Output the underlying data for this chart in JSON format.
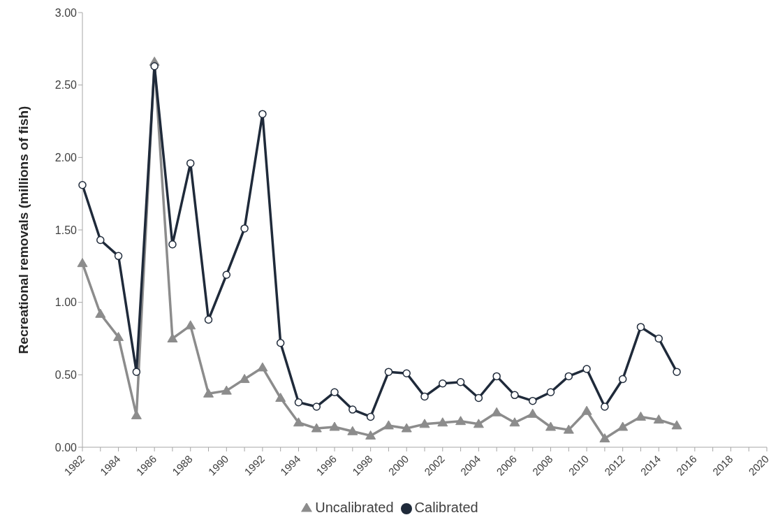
{
  "chart_data": {
    "type": "line",
    "ylabel": "Recreational removals (millions of fish)",
    "categories": [
      "1982",
      null,
      "1984",
      null,
      "1986",
      null,
      "1988",
      null,
      "1990",
      null,
      "1992",
      null,
      "1994",
      null,
      "1996",
      null,
      "1998",
      null,
      "2000",
      null,
      "2002",
      null,
      "2004",
      null,
      "2006",
      null,
      "2008",
      null,
      "2010",
      null,
      "2012",
      null,
      "2014",
      null,
      "2016",
      null,
      "2018",
      null,
      "2020"
    ],
    "series": [
      {
        "name": "Uncalibrated",
        "color": "#8c8c8c",
        "marker": "triangle",
        "values": [
          1.27,
          0.92,
          0.76,
          0.22,
          2.66,
          0.75,
          0.84,
          0.37,
          0.39,
          0.47,
          0.55,
          0.34,
          0.17,
          0.13,
          0.14,
          0.11,
          0.08,
          0.15,
          0.13,
          0.16,
          0.17,
          0.18,
          0.16,
          0.24,
          0.17,
          0.23,
          0.14,
          0.12,
          0.25,
          0.06,
          0.14,
          0.21,
          0.19,
          0.15,
          null,
          null,
          null,
          null,
          null
        ]
      },
      {
        "name": "Calibrated",
        "color": "#1f2a3a",
        "marker": "circle",
        "values": [
          1.81,
          1.43,
          1.32,
          0.52,
          2.63,
          1.4,
          1.96,
          0.88,
          1.19,
          1.51,
          2.3,
          0.72,
          0.31,
          0.28,
          0.38,
          0.26,
          0.21,
          0.52,
          0.51,
          0.35,
          0.44,
          0.45,
          0.34,
          0.49,
          0.36,
          0.32,
          0.38,
          0.49,
          0.54,
          0.28,
          0.47,
          0.83,
          0.75,
          0.52,
          null,
          null,
          null,
          null,
          null
        ]
      }
    ],
    "ylim": [
      0,
      3
    ],
    "yticks": [
      {
        "value": 0,
        "label": "0.00"
      },
      {
        "value": 0.5,
        "label": "0.50"
      },
      {
        "value": 1,
        "label": "1.00"
      },
      {
        "value": 1.5,
        "label": "1.50"
      },
      {
        "value": 2,
        "label": "2.00"
      },
      {
        "value": 2.5,
        "label": "2.50"
      },
      {
        "value": 3,
        "label": "3.00"
      }
    ],
    "grid": false,
    "legend": "bottom",
    "line_style": "solid"
  }
}
